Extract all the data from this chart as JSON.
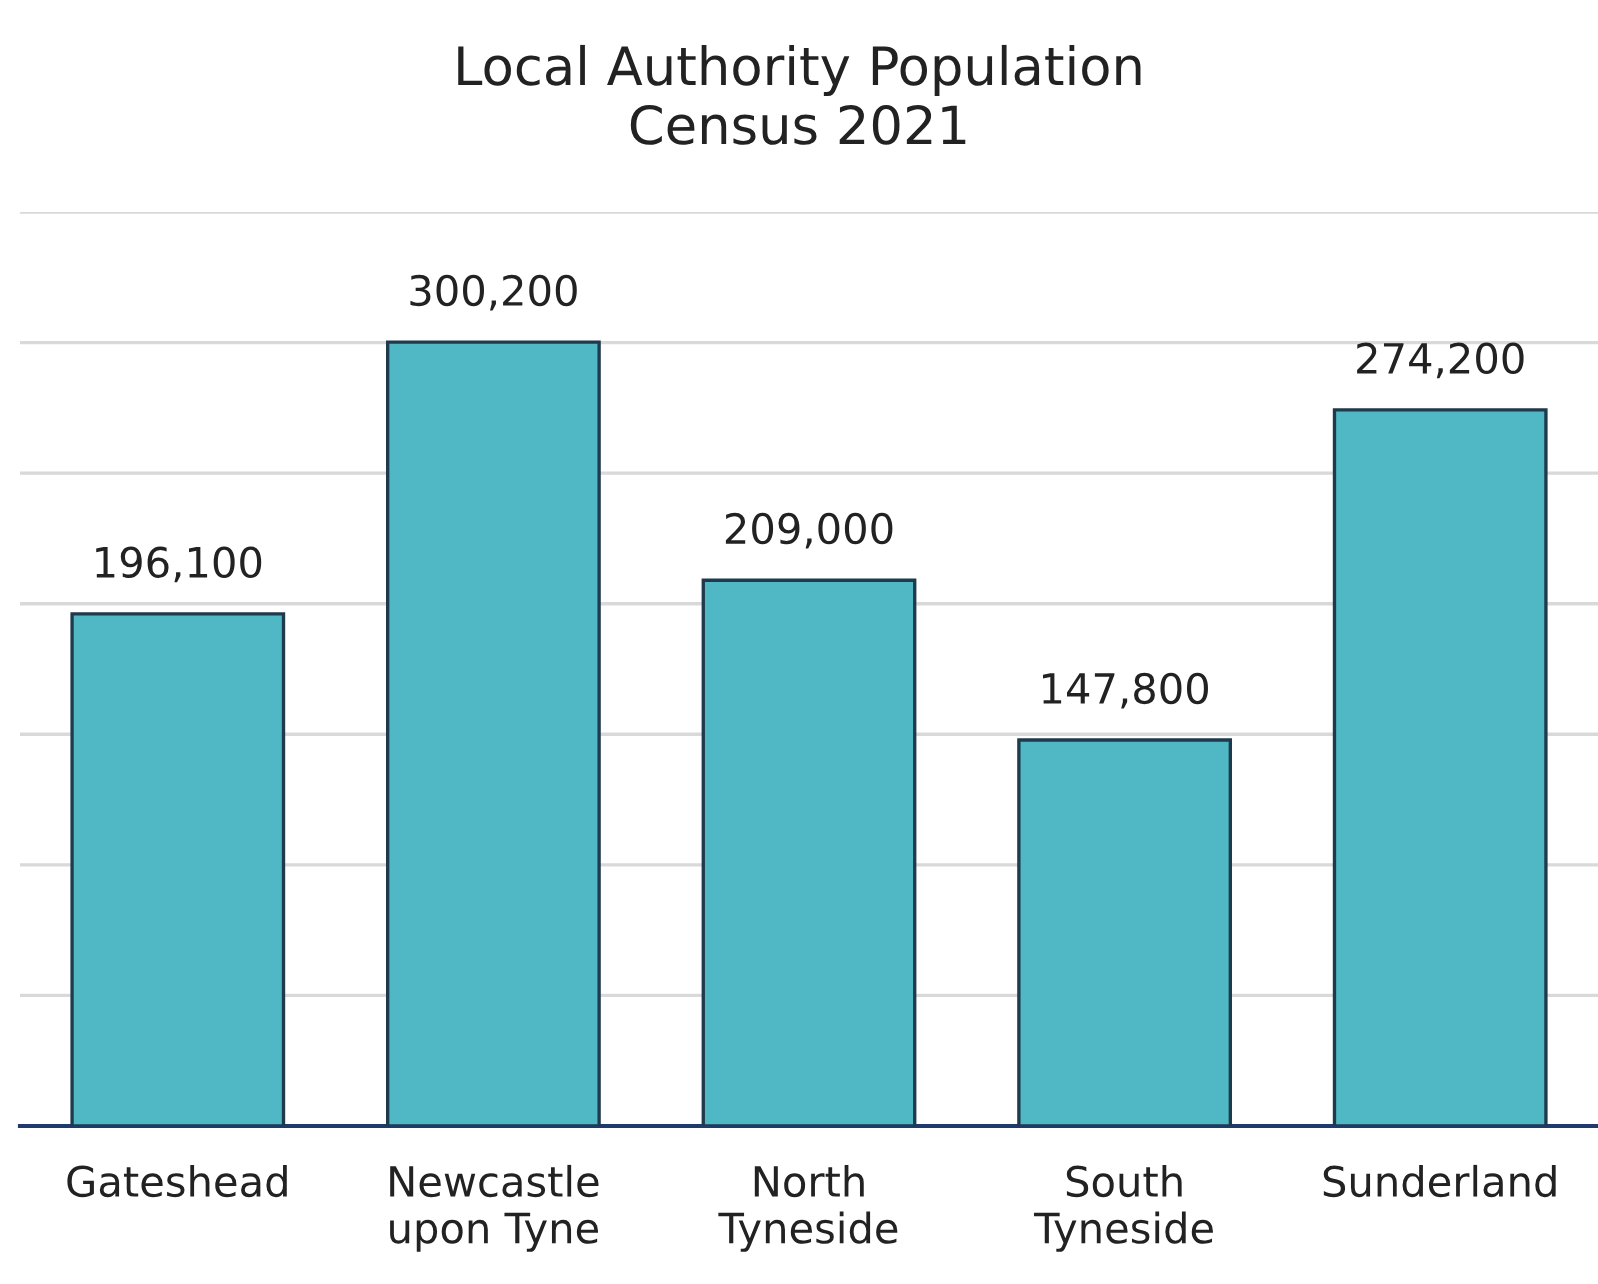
{
  "chart_data": {
    "type": "bar",
    "title": "Local Authority Population\nCensus 2021",
    "categories": [
      "Gateshead",
      "Newcastle\nupon Tyne",
      "North\nTyneside",
      "South\nTyneside",
      "Sunderland"
    ],
    "values": [
      196100,
      300200,
      209000,
      147800,
      274200
    ],
    "value_labels": [
      "196,100",
      "300,200",
      "209,000",
      "147,800",
      "274,200"
    ],
    "color": "#4fb8c4",
    "ylim": [
      0,
      350000
    ],
    "yticks": [
      {
        "value": 0,
        "label": null
      },
      {
        "value": 50000,
        "label": null
      },
      {
        "value": 100000,
        "label": null
      },
      {
        "value": 150000,
        "label": null
      },
      {
        "value": 200000,
        "label": null
      },
      {
        "value": 250000,
        "label": null
      },
      {
        "value": 300000,
        "label": null
      },
      {
        "value": 350000,
        "label": null
      }
    ],
    "grid": "y",
    "tick_labels": "x",
    "legend": false
  }
}
